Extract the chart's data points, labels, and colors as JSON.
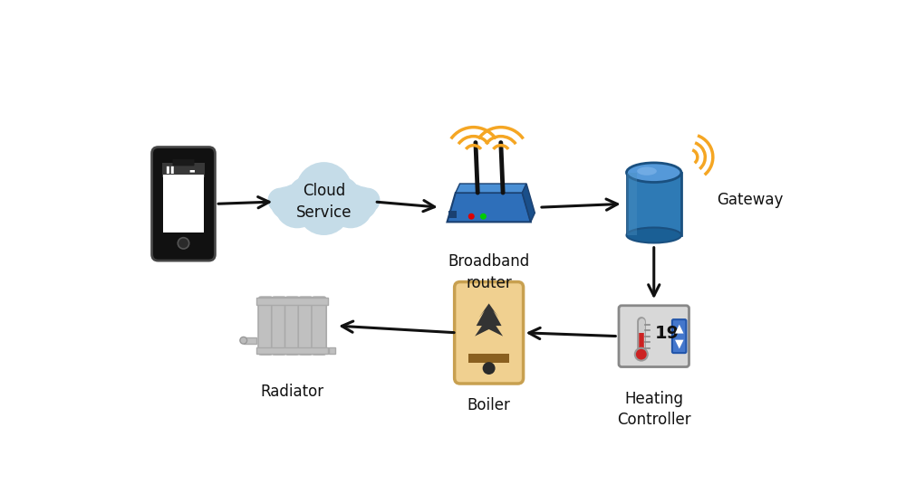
{
  "bg_color": "#ffffff",
  "arrow_color": "#111111",
  "phone_body_color": "#111111",
  "cloud_color": "#c5dce8",
  "router_body_color": "#2e6fba",
  "router_side_color": "#1a4f8a",
  "router_top_color": "#4a8fd4",
  "gateway_body_color": "#2e7ab5",
  "gateway_top_color": "#5599d9",
  "gateway_side_color": "#1a5080",
  "wifi_color": "#f5a623",
  "boiler_color": "#f0d090",
  "boiler_border_color": "#c8a050",
  "radiator_color": "#c0c0c0",
  "radiator_dark": "#a0a0a0",
  "controller_color": "#d8d8d8",
  "controller_border": "#888888",
  "text_color": "#111111",
  "labels": {
    "cloud": "Cloud\nService",
    "router": "Broadband\nrouter",
    "gateway": "Gateway",
    "boiler": "Boiler",
    "radiator": "Radiator",
    "controller": "Heating\nController"
  }
}
